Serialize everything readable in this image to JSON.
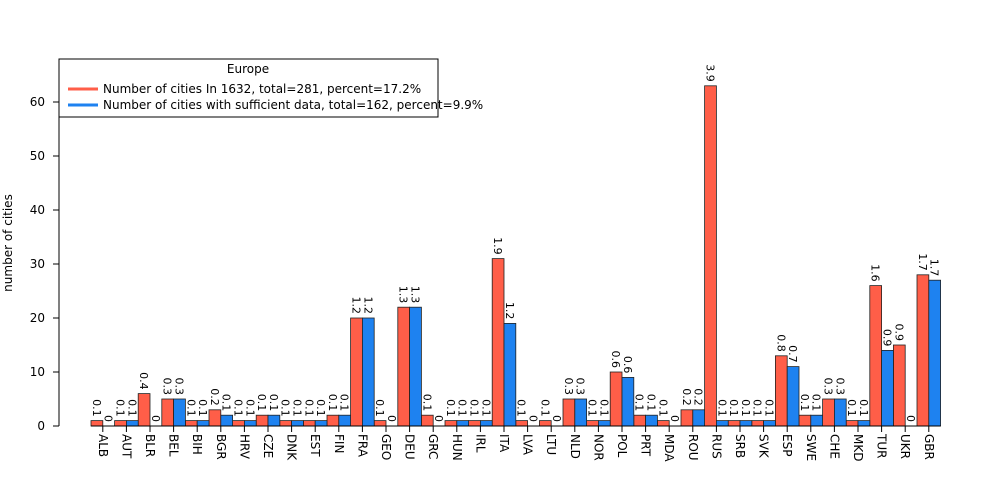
{
  "chart_data": {
    "type": "bar",
    "ylabel": "number of cities",
    "ylim": [
      0,
      68
    ],
    "yticks": [
      0,
      10,
      20,
      30,
      40,
      50,
      60
    ],
    "legend": {
      "title": "Europe",
      "placement": "top-left"
    },
    "categories": [
      "ALB",
      "AUT",
      "BLR",
      "BEL",
      "BIH",
      "BGR",
      "HRV",
      "CZE",
      "DNK",
      "EST",
      "FIN",
      "FRA",
      "GEO",
      "DEU",
      "GRC",
      "HUN",
      "IRL",
      "ITA",
      "LVA",
      "LTU",
      "NLD",
      "NOR",
      "POL",
      "PRT",
      "MDA",
      "ROU",
      "RUS",
      "SRB",
      "SVK",
      "ESP",
      "SWE",
      "CHE",
      "MKD",
      "TUR",
      "UKR",
      "GBR"
    ],
    "series": [
      {
        "name": "Number of cities In 1632, total=281, percent=17.2%",
        "color": "#FF5E48",
        "values": [
          1,
          1,
          6,
          5,
          1,
          3,
          1,
          2,
          1,
          1,
          2,
          20,
          1,
          22,
          2,
          1,
          1,
          31,
          1,
          1,
          5,
          1,
          10,
          2,
          1,
          3,
          63,
          1,
          1,
          13,
          2,
          5,
          1,
          26,
          15,
          28
        ],
        "labels": [
          "0.1",
          "0.1",
          "0.4",
          "0.3",
          "0.1",
          "0.2",
          "0.1",
          "0.1",
          "0.1",
          "0.1",
          "0.1",
          "1.2",
          "0.1",
          "1.3",
          "0.1",
          "0.1",
          "0.1",
          "1.9",
          "0.1",
          "0.1",
          "0.3",
          "0.1",
          "0.6",
          "0.1",
          "0.1",
          "0.2",
          "3.9",
          "0.1",
          "0.1",
          "0.8",
          "0.1",
          "0.3",
          "0.1",
          "1.6",
          "0.9",
          "1.7"
        ]
      },
      {
        "name": "Number of cities with sufficient data, total=162, percent=9.9%",
        "color": "#1E82F0",
        "values": [
          0,
          1,
          0,
          5,
          1,
          2,
          1,
          2,
          1,
          1,
          2,
          20,
          0,
          22,
          0,
          1,
          1,
          19,
          0,
          0,
          5,
          1,
          9,
          2,
          0,
          3,
          1,
          1,
          1,
          11,
          2,
          5,
          1,
          14,
          0,
          27
        ],
        "labels": [
          "0",
          "0.1",
          "0",
          "0.3",
          "0.1",
          "0.1",
          "0.1",
          "0.1",
          "0.1",
          "0.1",
          "0.1",
          "1.2",
          "0",
          "1.3",
          "0",
          "0.1",
          "0.1",
          "1.2",
          "0",
          "0",
          "0.3",
          "0.1",
          "0.6",
          "0.1",
          "0",
          "0.2",
          "0.1",
          "0.1",
          "0.1",
          "0.7",
          "0.1",
          "0.3",
          "0.1",
          "0.9",
          "0",
          "1.7"
        ]
      }
    ]
  }
}
